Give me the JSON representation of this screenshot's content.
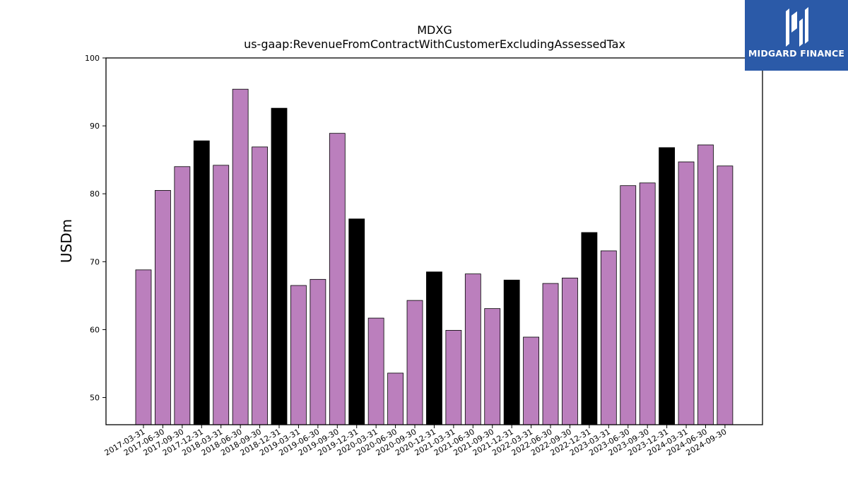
{
  "chart_data": {
    "type": "bar",
    "title": "MDXG",
    "subtitle": "us-gaap:RevenueFromContractWithCustomerExcludingAssessedTax",
    "ylabel": "USDm",
    "ylim": [
      46,
      100
    ],
    "yticks": [
      50,
      60,
      70,
      80,
      90,
      100
    ],
    "grid": false,
    "categories": [
      "2017-03-31",
      "2017-06-30",
      "2017-09-30",
      "2017-12-31",
      "2018-03-31",
      "2018-06-30",
      "2018-09-30",
      "2018-12-31",
      "2019-03-31",
      "2019-06-30",
      "2019-09-30",
      "2019-12-31",
      "2020-03-31",
      "2020-06-30",
      "2020-09-30",
      "2020-12-31",
      "2021-03-31",
      "2021-06-30",
      "2021-09-30",
      "2021-12-31",
      "2022-03-31",
      "2022-06-30",
      "2022-09-30",
      "2022-12-31",
      "2023-03-31",
      "2023-06-30",
      "2023-09-30",
      "2023-12-31",
      "2024-03-31",
      "2024-06-30",
      "2024-09-30"
    ],
    "values": [
      68.8,
      80.5,
      84.0,
      87.8,
      84.2,
      95.4,
      86.9,
      92.6,
      66.5,
      67.4,
      88.9,
      76.3,
      61.7,
      53.6,
      64.3,
      68.5,
      59.9,
      68.2,
      63.1,
      67.3,
      58.9,
      66.8,
      67.6,
      74.3,
      71.6,
      81.2,
      81.6,
      86.8,
      84.7,
      87.2,
      84.1
    ],
    "colors": {
      "quarter_bar": "#bb7fbd",
      "year_end_bar": "#000000",
      "edge": "#000000"
    }
  },
  "logo": {
    "text": "MIDGARD FINANCE",
    "background": "#2b5aa8"
  }
}
